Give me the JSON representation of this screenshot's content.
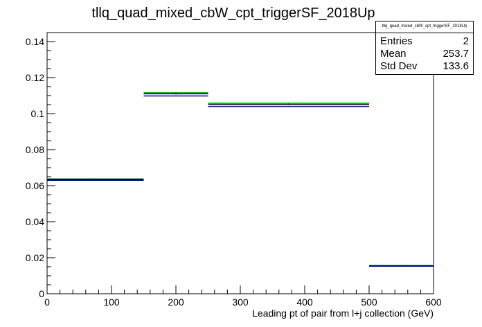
{
  "chart_data": {
    "type": "histogram",
    "title": "tllq_quad_mixed_cbW_cpt_triggerSF_2018Up",
    "xlabel": "Leading pt of pair from l+j collection (GeV)",
    "ylabel": "",
    "xlim": [
      0,
      600
    ],
    "ylim": [
      0,
      0.145
    ],
    "x_ticks": [
      0,
      100,
      200,
      300,
      400,
      500,
      600
    ],
    "y_ticks": [
      0,
      0.02,
      0.04,
      0.06,
      0.08,
      0.1,
      0.12,
      0.14
    ],
    "x_tick_labels": [
      "0",
      "100",
      "200",
      "300",
      "400",
      "500",
      "600"
    ],
    "y_tick_labels": [
      "0",
      "0.02",
      "0.04",
      "0.06",
      "0.08",
      "0.1",
      "0.12",
      "0.14"
    ],
    "grid": false,
    "bin_edges": [
      0,
      150,
      250,
      500,
      600
    ],
    "series": [
      {
        "color": "#00cc00",
        "values": [
          0.0638,
          0.1117,
          0.1058,
          0.0157
        ]
      },
      {
        "color": "#000000",
        "values": [
          0.0635,
          0.111,
          0.1052,
          0.0155
        ]
      },
      {
        "color": "#0000cc",
        "values": [
          0.063,
          0.1098,
          0.104,
          0.0153
        ]
      }
    ],
    "legend": "top-right"
  },
  "stats": {
    "name": "tllq_quad_mixed_cbW_cpt_triggerSF_2018Up",
    "rows": [
      {
        "key": "Entries",
        "value": "2"
      },
      {
        "key": "Mean",
        "value": "253.7"
      },
      {
        "key": "Std Dev",
        "value": "133.6"
      }
    ]
  }
}
